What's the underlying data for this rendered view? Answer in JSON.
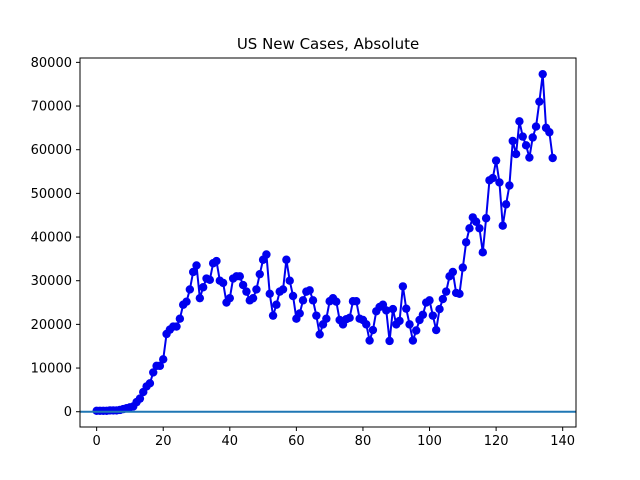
{
  "chart_data": {
    "type": "line",
    "title": "US New Cases, Absolute",
    "xlabel": "",
    "ylabel": "",
    "xlim": [
      -5,
      144
    ],
    "ylim": [
      -3500,
      81000
    ],
    "x_ticks": [
      0,
      20,
      40,
      60,
      80,
      100,
      120,
      140
    ],
    "y_ticks": [
      0,
      10000,
      20000,
      30000,
      40000,
      50000,
      60000,
      70000,
      80000
    ],
    "grid": false,
    "colors": {
      "series": "#0000ee",
      "baseline": "#1f77b4"
    },
    "baseline_y": 0,
    "series": [
      {
        "values": [
          [
            0,
            200
          ],
          [
            1,
            200
          ],
          [
            2,
            200
          ],
          [
            3,
            200
          ],
          [
            4,
            300
          ],
          [
            5,
            300
          ],
          [
            6,
            300
          ],
          [
            7,
            400
          ],
          [
            8,
            600
          ],
          [
            9,
            800
          ],
          [
            10,
            1000
          ],
          [
            11,
            1200
          ],
          [
            12,
            2200
          ],
          [
            13,
            3000
          ],
          [
            14,
            4500
          ],
          [
            15,
            5800
          ],
          [
            16,
            6500
          ],
          [
            17,
            9000
          ],
          [
            18,
            10500
          ],
          [
            19,
            10500
          ],
          [
            20,
            12000
          ],
          [
            21,
            17800
          ],
          [
            22,
            18800
          ],
          [
            23,
            19500
          ],
          [
            24,
            19500
          ],
          [
            25,
            21300
          ],
          [
            26,
            24500
          ],
          [
            27,
            25200
          ],
          [
            28,
            28000
          ],
          [
            29,
            32000
          ],
          [
            30,
            33500
          ],
          [
            31,
            26000
          ],
          [
            32,
            28500
          ],
          [
            33,
            30500
          ],
          [
            34,
            30200
          ],
          [
            35,
            34000
          ],
          [
            36,
            34500
          ],
          [
            37,
            30000
          ],
          [
            38,
            29500
          ],
          [
            39,
            25000
          ],
          [
            40,
            26000
          ],
          [
            41,
            30500
          ],
          [
            42,
            31000
          ],
          [
            43,
            31000
          ],
          [
            44,
            29000
          ],
          [
            45,
            27500
          ],
          [
            46,
            25500
          ],
          [
            47,
            26000
          ],
          [
            48,
            28000
          ],
          [
            49,
            31500
          ],
          [
            50,
            34800
          ],
          [
            51,
            36000
          ],
          [
            52,
            27000
          ],
          [
            53,
            22000
          ],
          [
            54,
            24500
          ],
          [
            55,
            27500
          ],
          [
            56,
            28000
          ],
          [
            57,
            34800
          ],
          [
            58,
            30000
          ],
          [
            59,
            26500
          ],
          [
            60,
            21300
          ],
          [
            61,
            22500
          ],
          [
            62,
            25500
          ],
          [
            63,
            27500
          ],
          [
            64,
            27800
          ],
          [
            65,
            25500
          ],
          [
            66,
            22000
          ],
          [
            67,
            17700
          ],
          [
            68,
            20000
          ],
          [
            69,
            21300
          ],
          [
            70,
            25300
          ],
          [
            71,
            26000
          ],
          [
            72,
            25200
          ],
          [
            73,
            21000
          ],
          [
            74,
            20000
          ],
          [
            75,
            21200
          ],
          [
            76,
            21500
          ],
          [
            77,
            25300
          ],
          [
            78,
            25300
          ],
          [
            79,
            21300
          ],
          [
            80,
            21000
          ],
          [
            81,
            20000
          ],
          [
            82,
            16300
          ],
          [
            83,
            18700
          ],
          [
            84,
            23000
          ],
          [
            85,
            24000
          ],
          [
            86,
            24500
          ],
          [
            87,
            23200
          ],
          [
            88,
            16200
          ],
          [
            89,
            23500
          ],
          [
            90,
            20000
          ],
          [
            91,
            20800
          ],
          [
            92,
            28700
          ],
          [
            93,
            23600
          ],
          [
            94,
            20000
          ],
          [
            95,
            16300
          ],
          [
            96,
            18600
          ],
          [
            97,
            21000
          ],
          [
            98,
            22200
          ],
          [
            99,
            25000
          ],
          [
            100,
            25500
          ],
          [
            101,
            22000
          ],
          [
            102,
            18700
          ],
          [
            103,
            23500
          ],
          [
            104,
            25800
          ],
          [
            105,
            27500
          ],
          [
            106,
            31000
          ],
          [
            107,
            32000
          ],
          [
            108,
            27200
          ],
          [
            109,
            27000
          ],
          [
            110,
            33000
          ],
          [
            111,
            38800
          ],
          [
            112,
            42000
          ],
          [
            113,
            44500
          ],
          [
            114,
            43500
          ],
          [
            115,
            42000
          ],
          [
            116,
            36500
          ],
          [
            117,
            44300
          ],
          [
            118,
            53000
          ],
          [
            119,
            53500
          ],
          [
            120,
            57500
          ],
          [
            121,
            52500
          ],
          [
            122,
            42600
          ],
          [
            123,
            47500
          ],
          [
            124,
            51800
          ],
          [
            125,
            62000
          ],
          [
            126,
            59000
          ],
          [
            127,
            66500
          ],
          [
            128,
            63000
          ],
          [
            129,
            61000
          ],
          [
            130,
            58200
          ],
          [
            131,
            62800
          ],
          [
            132,
            65300
          ],
          [
            133,
            71000
          ],
          [
            134,
            77300
          ],
          [
            135,
            65000
          ],
          [
            136,
            64000
          ],
          [
            137,
            58100
          ]
        ]
      }
    ]
  }
}
